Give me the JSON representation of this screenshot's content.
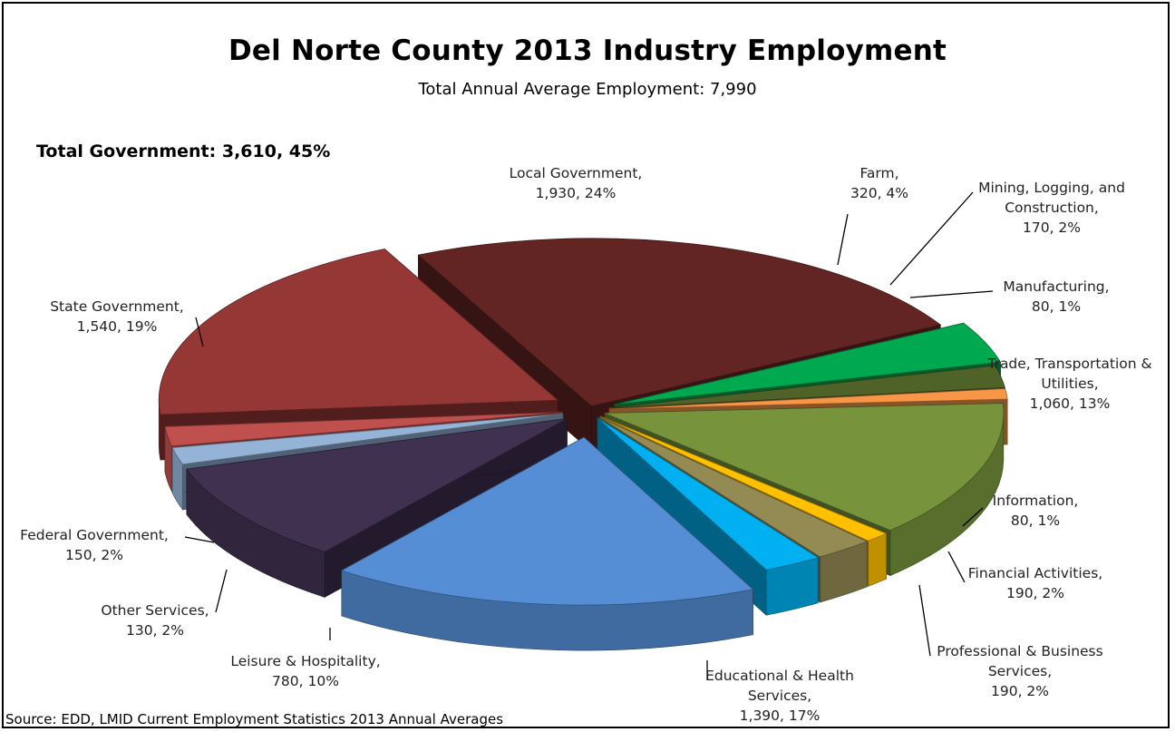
{
  "title": "Del Norte County 2013 Industry Employment",
  "subtitle": "Total Annual Average Employment: 7,990",
  "total_government": "Total Government:  3,610, 45%",
  "source": "Source: EDD, LMID Current Employment Statistics 2013 Annual Averages",
  "chart_data": {
    "type": "pie",
    "title": "Del Norte County 2013 Industry Employment",
    "total": 7990,
    "slices": [
      {
        "label": "Local Government",
        "value": 1930,
        "percent": 24,
        "color": "#632523",
        "lines": [
          "Local Government,",
          "1,930, 24%"
        ]
      },
      {
        "label": "Farm",
        "value": 320,
        "percent": 4,
        "color": "#00A84F",
        "lines": [
          "Farm,",
          "320, 4%"
        ]
      },
      {
        "label": "Mining, Logging, and Construction",
        "value": 170,
        "percent": 2,
        "color": "#4F6228",
        "lines": [
          "Mining, Logging, and",
          "Construction,",
          "170, 2%"
        ]
      },
      {
        "label": "Manufacturing",
        "value": 80,
        "percent": 1,
        "color": "#F79646",
        "lines": [
          "Manufacturing,",
          "80, 1%"
        ]
      },
      {
        "label": "Trade, Transportation & Utilities",
        "value": 1060,
        "percent": 13,
        "color": "#77933C",
        "lines": [
          "Trade, Transportation &",
          "Utilities,",
          "1,060, 13%"
        ]
      },
      {
        "label": "Information",
        "value": 80,
        "percent": 1,
        "color": "#FFC000",
        "lines": [
          "Information,",
          "80, 1%"
        ]
      },
      {
        "label": "Financial Activities",
        "value": 190,
        "percent": 2,
        "color": "#948A54",
        "lines": [
          "Financial Activities,",
          "190, 2%"
        ]
      },
      {
        "label": "Professional & Business Services",
        "value": 190,
        "percent": 2,
        "color": "#00B0F0",
        "lines": [
          "Professional & Business",
          "Services,",
          "190, 2%"
        ]
      },
      {
        "label": "Educational & Health Services",
        "value": 1390,
        "percent": 17,
        "color": "#558ED5",
        "lines": [
          "Educational & Health",
          "Services,",
          "1,390, 17%"
        ]
      },
      {
        "label": "Leisure & Hospitality",
        "value": 780,
        "percent": 10,
        "color": "#403151",
        "lines": [
          "Leisure & Hospitality,",
          "780, 10%"
        ]
      },
      {
        "label": "Other Services",
        "value": 130,
        "percent": 2,
        "color": "#95B3D7",
        "lines": [
          "Other Services,",
          "130, 2%"
        ]
      },
      {
        "label": "Federal Government",
        "value": 150,
        "percent": 2,
        "color": "#C0504D",
        "lines": [
          "Federal Government,",
          "150, 2%"
        ]
      },
      {
        "label": "State Government",
        "value": 1540,
        "percent": 19,
        "color": "#953735",
        "lines": [
          "State Government,",
          "1,540, 19%"
        ]
      }
    ]
  }
}
